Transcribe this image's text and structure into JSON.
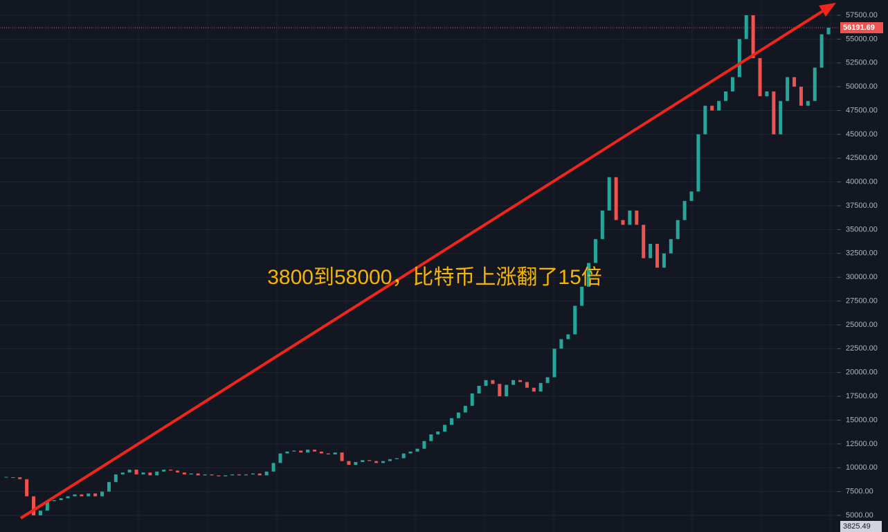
{
  "chart_data": {
    "type": "candlestick",
    "annotation": "3800到58000，比特币上涨翻了15倍",
    "closes": [
      9000,
      9000,
      8800,
      7000,
      5000,
      5500,
      6500,
      6600,
      6800,
      7000,
      7200,
      7000,
      7300,
      7000,
      7500,
      8500,
      9300,
      9500,
      9800,
      9300,
      9500,
      9200,
      9600,
      9800,
      9700,
      9500,
      9300,
      9400,
      9200,
      9300,
      9200,
      9100,
      9200,
      9300,
      9200,
      9300,
      9400,
      9200,
      9600,
      10500,
      11500,
      11700,
      11800,
      11600,
      11900,
      11700,
      11500,
      11400,
      11600,
      10700,
      10300,
      10600,
      10800,
      10700,
      10500,
      10700,
      10900,
      11000,
      11500,
      11700,
      12000,
      12800,
      13500,
      13800,
      14500,
      15200,
      15800,
      16500,
      17800,
      18600,
      19200,
      18800,
      17500,
      18700,
      19200,
      19000,
      18400,
      18000,
      18900,
      19500,
      22500,
      23500,
      24000,
      27000,
      29000,
      31500,
      34000,
      37000,
      40500,
      36000,
      35500,
      37000,
      35500,
      32000,
      33500,
      31000,
      32500,
      34000,
      36000,
      38000,
      39000,
      45000,
      48000,
      47500,
      48500,
      49500,
      51000,
      55000,
      57500,
      53000,
      49000,
      49500,
      45000,
      48500,
      51000,
      50000,
      48000,
      48500,
      52000,
      55500,
      56191.69
    ],
    "up_color": "#26a69a",
    "down_color": "#ef5350",
    "ylim": [
      3255,
      59100
    ],
    "yticks": [
      {
        "value": 5000,
        "label": "5000.00"
      },
      {
        "value": 7500,
        "label": "7500.00"
      },
      {
        "value": 10000,
        "label": "10000.00"
      },
      {
        "value": 12500,
        "label": "12500.00"
      },
      {
        "value": 15000,
        "label": "15000.00"
      },
      {
        "value": 17500,
        "label": "17500.00"
      },
      {
        "value": 20000,
        "label": "20000.00"
      },
      {
        "value": 22500,
        "label": "22500.00"
      },
      {
        "value": 25000,
        "label": "25000.00"
      },
      {
        "value": 27500,
        "label": "27500.00"
      },
      {
        "value": 30000,
        "label": "30000.00"
      },
      {
        "value": 32500,
        "label": "32500.00"
      },
      {
        "value": 35000,
        "label": "35000.00"
      },
      {
        "value": 37500,
        "label": "37500.00"
      },
      {
        "value": 40000,
        "label": "40000.00"
      },
      {
        "value": 42500,
        "label": "42500.00"
      },
      {
        "value": 45000,
        "label": "45000.00"
      },
      {
        "value": 47500,
        "label": "47500.00"
      },
      {
        "value": 50000,
        "label": "50000.00"
      },
      {
        "value": 52500,
        "label": "52500.00"
      },
      {
        "value": 55000,
        "label": "55000.00"
      },
      {
        "value": 57500,
        "label": "57500.00"
      }
    ],
    "last_price": 56191.69,
    "low_price": 3825.49,
    "grid": true
  }
}
